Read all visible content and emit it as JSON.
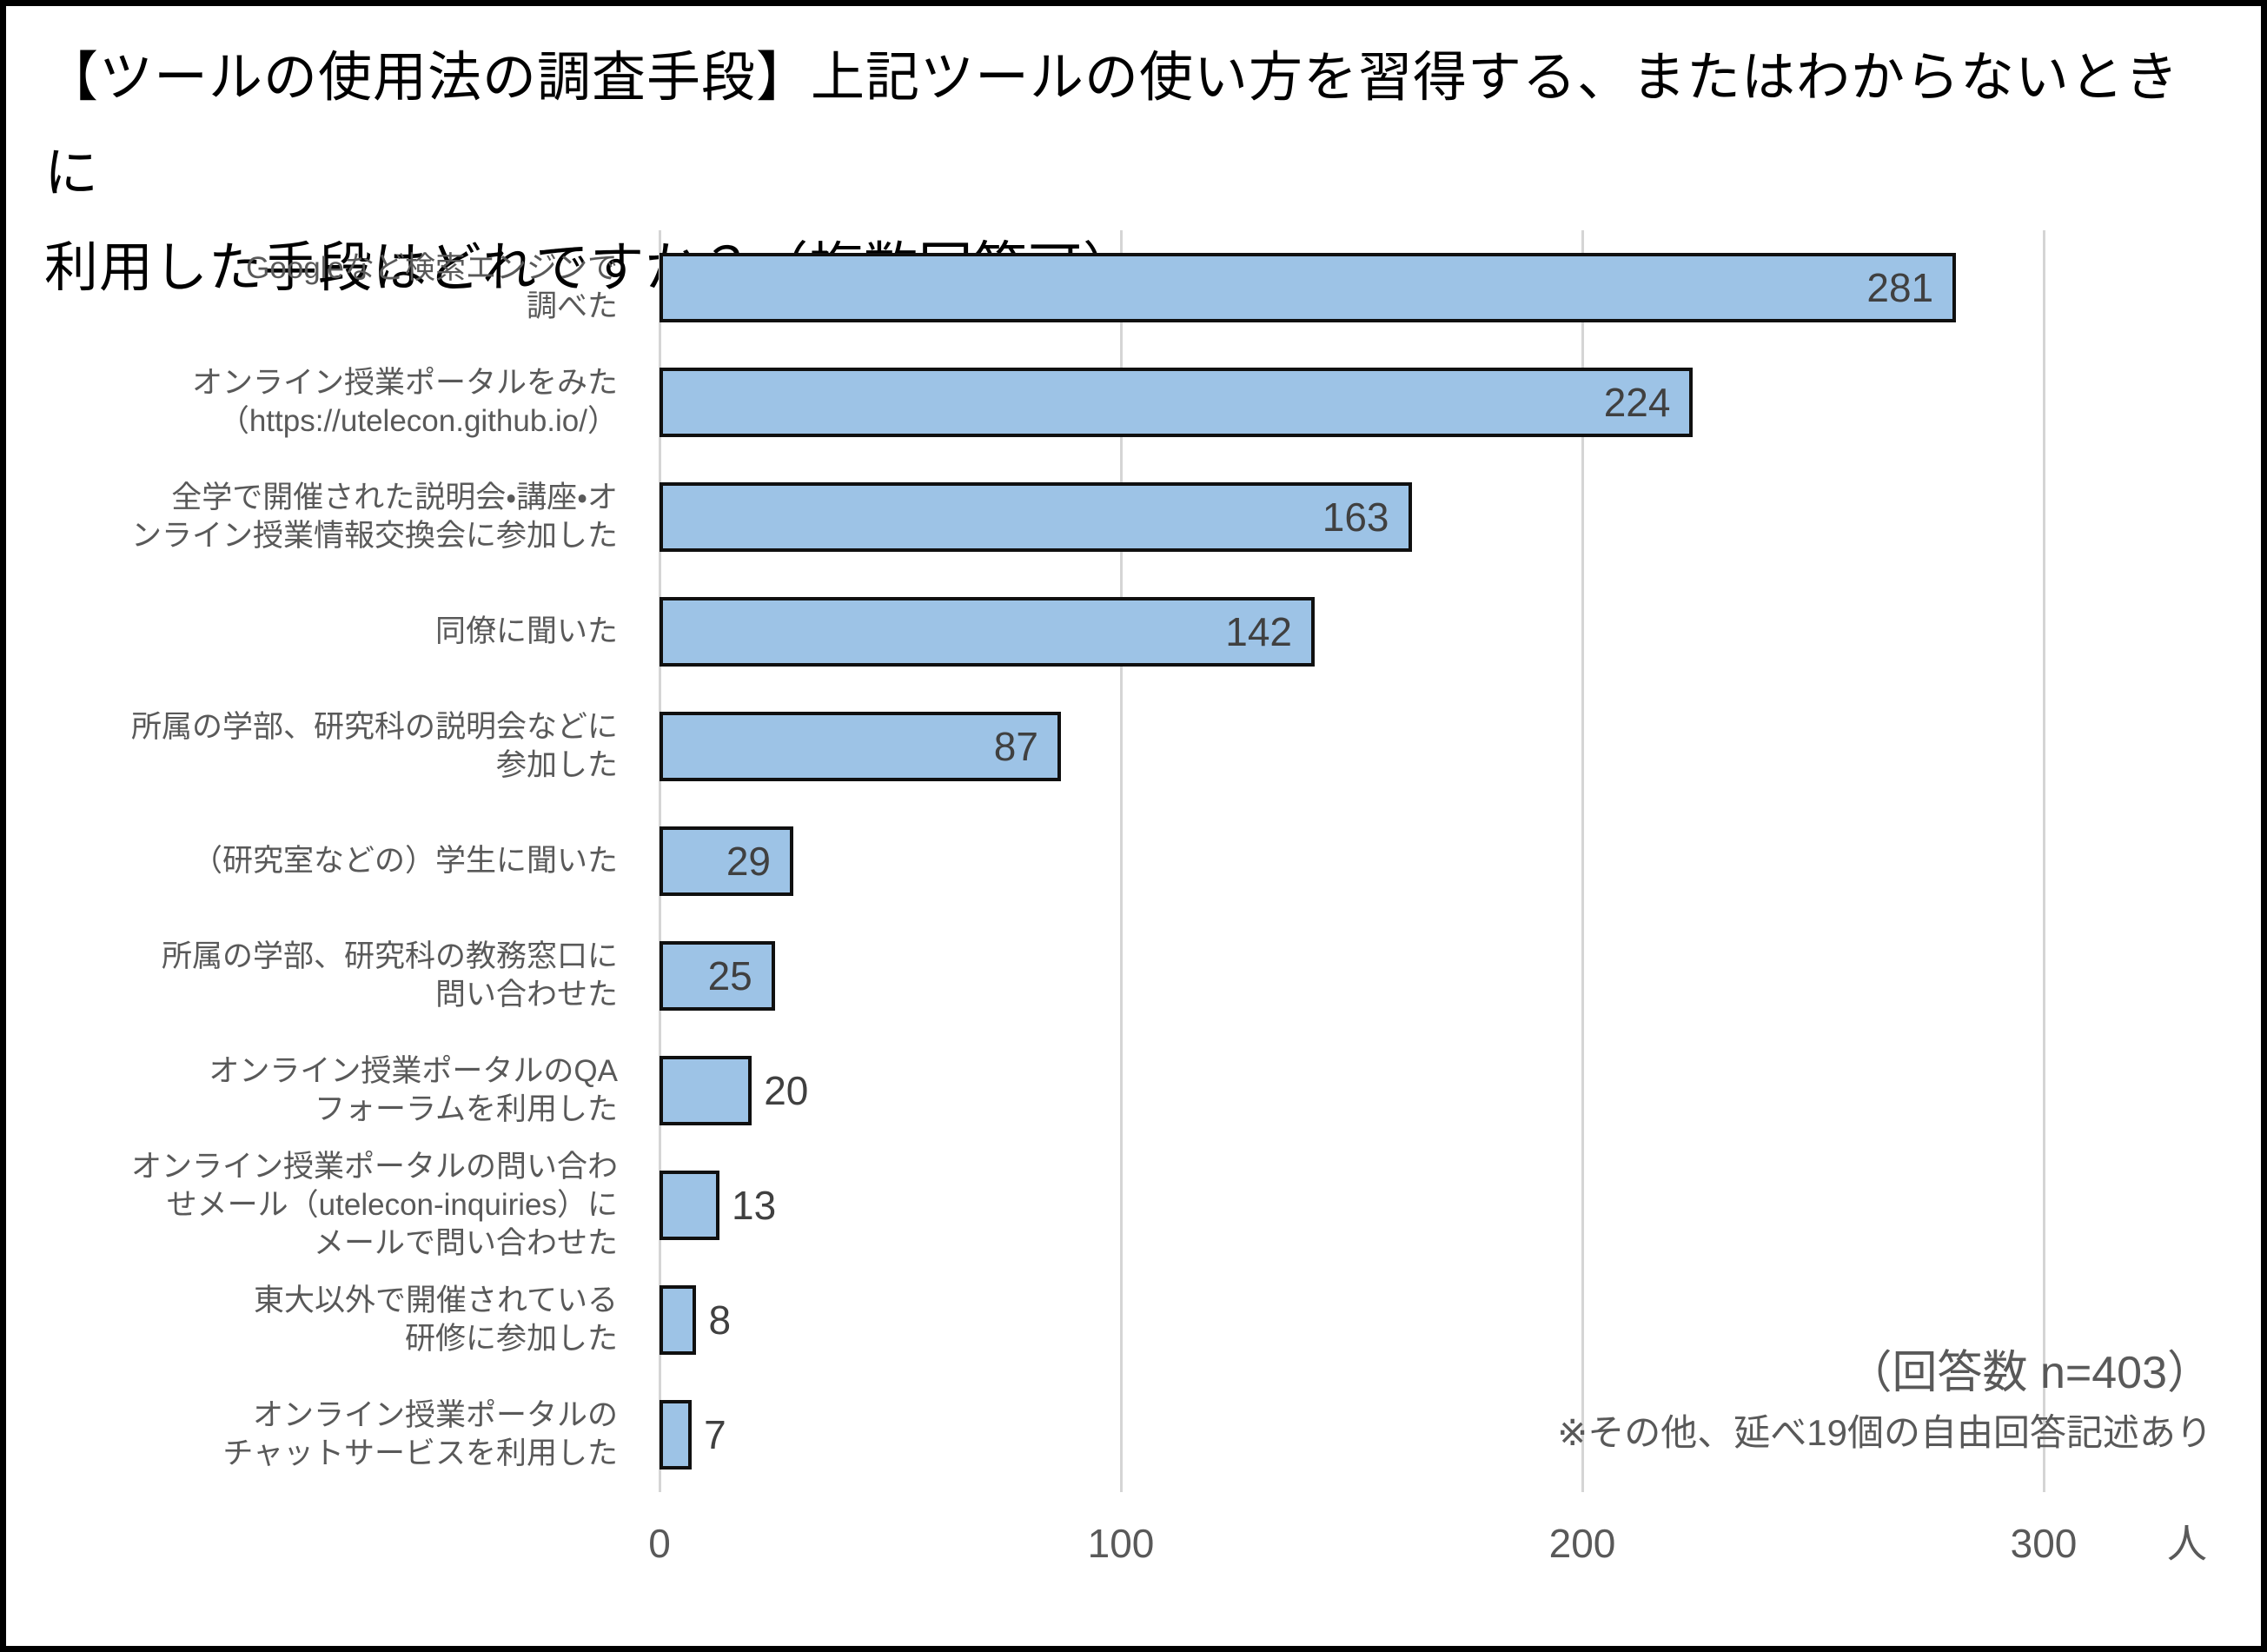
{
  "title": "【ツールの使用法の調査手段】上記ツールの使い方を習得する、またはわからないときに\n利用した手段はどれですか？（複数回答可）。",
  "chart_data": {
    "type": "bar",
    "orientation": "horizontal",
    "title": "【ツールの使用法の調査手段】上記ツールの使い方を習得する、またはわからないときに利用した手段はどれですか？（複数回答可）。",
    "categories": [
      "Googleなど検索エンジンで\n調べた",
      "オンライン授業ポータルをみた\n（https://utelecon.github.io/）",
      "全学で開催された説明会・講座・オ\nンライン授業情報交換会に参加した",
      "同僚に聞いた",
      "所属の学部、研究科の説明会などに\n参加した",
      "（研究室などの）学生に聞いた",
      "所属の学部、研究科の教務窓口に\n問い合わせた",
      "オンライン授業ポータルのQA\nフォーラムを利用した",
      "オンライン授業ポータルの問い合わ\nせメール（utelecon-inquiries）に\nメールで問い合わせた",
      "東大以外で開催されている\n研修に参加した",
      "オンライン授業ポータルの\nチャットサービスを利用した"
    ],
    "values": [
      281,
      224,
      163,
      142,
      87,
      29,
      25,
      20,
      13,
      8,
      7
    ],
    "x_ticks": [
      0,
      100,
      200,
      300
    ],
    "x_axis_unit": "人",
    "xlim": [
      0,
      341
    ],
    "grid": true,
    "legend": false,
    "bar_color": "#9DC3E6",
    "bar_border_color": "#101010",
    "gridline_color": "#D5D5D5",
    "value_label_color": "#404040",
    "category_label_color": "#595959",
    "annotations": [
      "（回答数 n=403）",
      "※その他、延べ19個の自由回答記述あり"
    ]
  }
}
